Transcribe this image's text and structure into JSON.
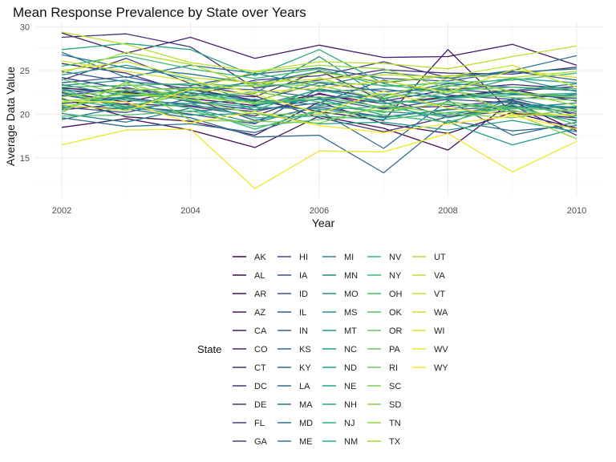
{
  "chart_data": {
    "type": "line",
    "title": "Mean Response Prevalence by State over Years",
    "xlabel": "Year",
    "ylabel": "Average Data Value",
    "x": [
      2002,
      2003,
      2004,
      2005,
      2006,
      2007,
      2008,
      2009,
      2010
    ],
    "xlim": [
      2002,
      2010
    ],
    "ylim": [
      10.5,
      30.5
    ],
    "x_ticks": [
      2002,
      2004,
      2006,
      2008,
      2010
    ],
    "x_tick_labels": [
      "2002",
      "2004",
      "2006",
      "2008",
      "2010"
    ],
    "y_ticks": [
      15,
      20,
      25,
      30
    ],
    "y_tick_labels": [
      "15",
      "20",
      "25",
      "30"
    ],
    "grid": true,
    "legend": {
      "title": "State",
      "position": "bottom",
      "columns": 5,
      "rows": 11
    },
    "series": [
      {
        "name": "AK",
        "values": [
          23.0,
          22.5,
          21.8,
          21.0,
          22.3,
          21.2,
          22.0,
          22.8,
          21.5
        ]
      },
      {
        "name": "AL",
        "values": [
          18.5,
          19.5,
          18.2,
          16.2,
          19.8,
          18.4,
          15.9,
          21.5,
          18.1
        ]
      },
      {
        "name": "AR",
        "values": [
          21.8,
          19.7,
          19.2,
          17.6,
          21.4,
          18.9,
          17.8,
          20.2,
          18.4
        ]
      },
      {
        "name": "AZ",
        "values": [
          22.5,
          21.4,
          22.9,
          21.6,
          20.3,
          19.3,
          27.4,
          20.1,
          19.6
        ]
      },
      {
        "name": "CA",
        "values": [
          29.3,
          27.0,
          28.8,
          26.4,
          27.9,
          26.5,
          26.6,
          28.0,
          25.6
        ]
      },
      {
        "name": "CO",
        "values": [
          20.5,
          21.2,
          20.9,
          19.8,
          22.4,
          20.7,
          20.9,
          21.6,
          19.9
        ]
      },
      {
        "name": "CT",
        "values": [
          25.8,
          24.7,
          22.4,
          22.0,
          25.0,
          21.5,
          22.8,
          23.4,
          22.9
        ]
      },
      {
        "name": "DC",
        "values": [
          28.8,
          29.2,
          27.7,
          23.0,
          23.9,
          25.1,
          24.7,
          24.6,
          25.4
        ]
      },
      {
        "name": "DE",
        "values": [
          23.9,
          26.4,
          23.5,
          22.1,
          19.6,
          18.0,
          19.7,
          21.0,
          17.6
        ]
      },
      {
        "name": "FL",
        "values": [
          24.2,
          22.9,
          22.1,
          23.9,
          24.4,
          26.0,
          24.2,
          22.6,
          23.2
        ]
      },
      {
        "name": "GA",
        "values": [
          22.2,
          21.1,
          20.0,
          18.9,
          22.9,
          21.8,
          19.7,
          20.4,
          19.3
        ]
      },
      {
        "name": "HI",
        "values": [
          22.1,
          23.1,
          21.4,
          20.5,
          21.3,
          23.9,
          22.2,
          21.7,
          22.3
        ]
      },
      {
        "name": "IA",
        "values": [
          21.2,
          21.9,
          21.0,
          20.3,
          21.8,
          20.6,
          21.7,
          21.3,
          20.1
        ]
      },
      {
        "name": "ID",
        "values": [
          20.8,
          20.2,
          21.8,
          19.3,
          20.8,
          19.7,
          20.5,
          20.9,
          20.7
        ]
      },
      {
        "name": "IL",
        "values": [
          23.6,
          24.3,
          22.8,
          21.5,
          23.6,
          22.6,
          22.9,
          22.3,
          21.8
        ]
      },
      {
        "name": "IN",
        "values": [
          24.9,
          23.7,
          23.3,
          24.6,
          25.3,
          24.1,
          23.8,
          24.9,
          23.9
        ]
      },
      {
        "name": "KS",
        "values": [
          22.7,
          22.6,
          23.1,
          22.8,
          21.9,
          22.1,
          23.5,
          23.1,
          22.7
        ]
      },
      {
        "name": "KY",
        "values": [
          21.0,
          20.6,
          19.6,
          17.4,
          17.6,
          13.3,
          19.3,
          18.1,
          18.7
        ]
      },
      {
        "name": "LA",
        "values": [
          19.6,
          18.6,
          18.9,
          17.9,
          20.4,
          16.1,
          21.6,
          17.6,
          19.1
        ]
      },
      {
        "name": "MA",
        "values": [
          26.8,
          25.3,
          24.6,
          23.5,
          24.9,
          23.6,
          24.4,
          24.8,
          25.2
        ]
      },
      {
        "name": "MD",
        "values": [
          27.1,
          24.2,
          25.6,
          24.7,
          23.2,
          24.8,
          24.1,
          25.0,
          26.7
        ]
      },
      {
        "name": "ME",
        "values": [
          19.4,
          20.9,
          20.3,
          20.9,
          22.8,
          21.4,
          18.9,
          21.8,
          20.3
        ]
      },
      {
        "name": "MI",
        "values": [
          23.4,
          22.1,
          22.7,
          23.7,
          22.6,
          22.9,
          21.9,
          22.7,
          23.5
        ]
      },
      {
        "name": "MN",
        "values": [
          20.1,
          19.1,
          20.7,
          19.0,
          21.0,
          20.3,
          19.9,
          21.2,
          20.8
        ]
      },
      {
        "name": "MO",
        "values": [
          22.9,
          21.6,
          21.2,
          21.7,
          21.1,
          21.6,
          21.1,
          20.7,
          21.3
        ]
      },
      {
        "name": "MS",
        "values": [
          23.3,
          23.9,
          22.1,
          22.4,
          26.6,
          21.8,
          23.2,
          24.1,
          22.6
        ]
      },
      {
        "name": "MT",
        "values": [
          20.6,
          22.7,
          21.5,
          20.8,
          20.6,
          19.6,
          20.6,
          21.5,
          19.6
        ]
      },
      {
        "name": "NC",
        "values": [
          24.5,
          25.6,
          24.0,
          21.1,
          21.7,
          19.9,
          19.1,
          16.5,
          18.4
        ]
      },
      {
        "name": "ND",
        "values": [
          22.4,
          20.8,
          19.9,
          20.1,
          18.9,
          19.1,
          18.2,
          19.3,
          18.0
        ]
      },
      {
        "name": "NE",
        "values": [
          21.5,
          22.0,
          22.5,
          21.4,
          21.7,
          22.3,
          21.9,
          22.4,
          22.1
        ]
      },
      {
        "name": "NH",
        "values": [
          27.4,
          28.1,
          27.4,
          24.4,
          27.4,
          23.5,
          22.3,
          24.1,
          23.6
        ]
      },
      {
        "name": "NJ",
        "values": [
          22.9,
          20.4,
          23.2,
          20.5,
          22.9,
          21.2,
          21.8,
          22.2,
          22.4
        ]
      },
      {
        "name": "NM",
        "values": [
          21.7,
          20.7,
          21.2,
          19.6,
          19.8,
          19.4,
          20.2,
          20.6,
          20.9
        ]
      },
      {
        "name": "NV",
        "values": [
          20.9,
          21.8,
          20.7,
          18.3,
          20.5,
          20.9,
          19.6,
          20.8,
          19.2
        ]
      },
      {
        "name": "NY",
        "values": [
          25.5,
          26.7,
          25.2,
          24.1,
          25.2,
          23.2,
          23.6,
          23.9,
          24.7
        ]
      },
      {
        "name": "OH",
        "values": [
          23.1,
          23.3,
          23.5,
          23.2,
          23.7,
          23.3,
          22.7,
          23.1,
          22.9
        ]
      },
      {
        "name": "OK",
        "values": [
          19.8,
          19.9,
          20.4,
          18.6,
          19.4,
          19.9,
          19.1,
          21.1,
          18.8
        ]
      },
      {
        "name": "OR",
        "values": [
          21.3,
          22.4,
          21.6,
          22.6,
          21.4,
          20.2,
          21.4,
          20.7,
          20.4
        ]
      },
      {
        "name": "PA",
        "values": [
          22.6,
          20.9,
          22.3,
          21.2,
          22.0,
          20.8,
          22.6,
          21.9,
          21.6
        ]
      },
      {
        "name": "RI",
        "values": [
          24.0,
          22.2,
          22.7,
          23.4,
          23.3,
          21.7,
          23.3,
          22.5,
          21.9
        ]
      },
      {
        "name": "SC",
        "values": [
          20.2,
          23.7,
          19.3,
          19.2,
          19.0,
          21.0,
          20.1,
          19.6,
          20.6
        ]
      },
      {
        "name": "SD",
        "values": [
          20.4,
          23.5,
          21.7,
          20.0,
          20.0,
          20.5,
          21.2,
          20.3,
          19.8
        ]
      },
      {
        "name": "TN",
        "values": [
          22.0,
          22.8,
          22.9,
          24.8,
          25.6,
          25.2,
          23.0,
          20.1,
          17.2
        ]
      },
      {
        "name": "TX",
        "values": [
          21.4,
          22.3,
          22.0,
          21.3,
          24.2,
          22.0,
          24.1,
          22.6,
          21.0
        ]
      },
      {
        "name": "UT",
        "values": [
          24.7,
          27.1,
          25.7,
          23.2,
          24.8,
          23.7,
          24.4,
          24.2,
          24.9
        ]
      },
      {
        "name": "VA",
        "values": [
          29.4,
          28.0,
          25.9,
          24.9,
          26.0,
          25.8,
          25.2,
          26.6,
          27.8
        ]
      },
      {
        "name": "VT",
        "values": [
          25.0,
          26.0,
          24.2,
          23.6,
          24.0,
          24.5,
          24.3,
          25.6,
          23.1
        ]
      },
      {
        "name": "WA",
        "values": [
          26.1,
          24.9,
          23.8,
          22.5,
          23.0,
          23.8,
          22.5,
          25.1,
          24.2
        ]
      },
      {
        "name": "WI",
        "values": [
          21.1,
          20.4,
          22.9,
          22.3,
          20.1,
          22.6,
          20.7,
          19.9,
          20.0
        ]
      },
      {
        "name": "WV",
        "values": [
          16.5,
          18.2,
          18.3,
          11.5,
          15.8,
          15.7,
          17.8,
          13.4,
          16.9
        ]
      },
      {
        "name": "WY",
        "values": [
          21.5,
          21.4,
          19.0,
          20.3,
          18.7,
          17.9,
          18.9,
          19.8,
          18.3
        ]
      }
    ]
  }
}
